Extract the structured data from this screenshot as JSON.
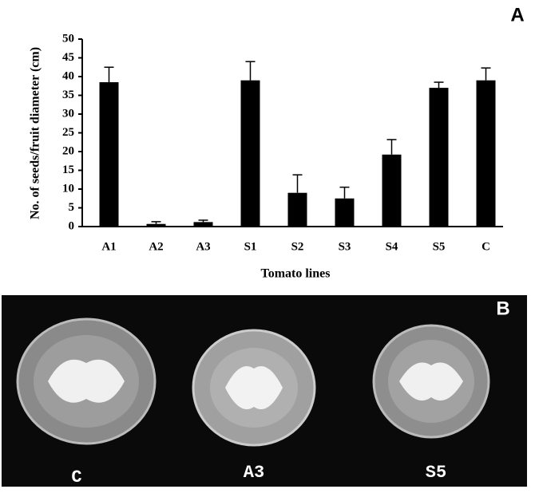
{
  "chart_data": {
    "type": "bar",
    "panel_label": "A",
    "x_label": "Tomato lines",
    "y_label": "No. of seeds/fruit diameter (cm)",
    "categories": [
      "A1",
      "A2",
      "A3",
      "S1",
      "S2",
      "S3",
      "S4",
      "S5",
      "C"
    ],
    "values": [
      38.5,
      0.7,
      1.2,
      39,
      9,
      7.5,
      19.2,
      37,
      39
    ],
    "errors": [
      4,
      0.6,
      0.5,
      5,
      4.8,
      3,
      4,
      1.5,
      3.3
    ],
    "color": "#000000",
    "ylim": [
      0,
      50
    ],
    "yticks": [
      0,
      5,
      10,
      15,
      20,
      25,
      30,
      35,
      40,
      45,
      50
    ]
  },
  "photo": {
    "panel_label": "B",
    "labels": [
      "C",
      "A3",
      "S5"
    ]
  }
}
